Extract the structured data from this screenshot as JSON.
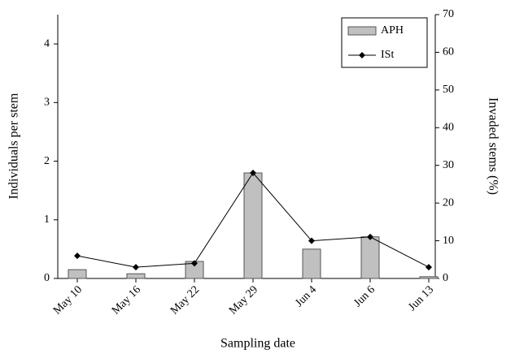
{
  "chart_data": {
    "type": "bar",
    "x_label": "Sampling date",
    "y_label": "Individuals  per  stem",
    "y2_label": "Invaded  stems  (%)",
    "categories": [
      "May 10",
      "May 16",
      "May 22",
      "May 29",
      "Jun 4",
      "Jun 6",
      "Jun 13"
    ],
    "series": [
      {
        "name": "APH",
        "type": "bar",
        "color": "#c0c0c0",
        "values": [
          0.15,
          0.08,
          0.29,
          1.8,
          0.5,
          0.71,
          0.03
        ]
      },
      {
        "name": "ISt",
        "type": "line",
        "axis": "y2",
        "color": "#000000",
        "values": [
          6,
          3,
          4,
          28,
          10,
          11,
          3
        ]
      }
    ],
    "ylim": [
      0,
      4.5
    ],
    "yticks": [
      0,
      1,
      2,
      3,
      4
    ],
    "y2lim": [
      0,
      70
    ],
    "y2ticks": [
      0,
      10,
      20,
      30,
      40,
      50,
      60,
      70
    ],
    "legend": "upper right"
  }
}
